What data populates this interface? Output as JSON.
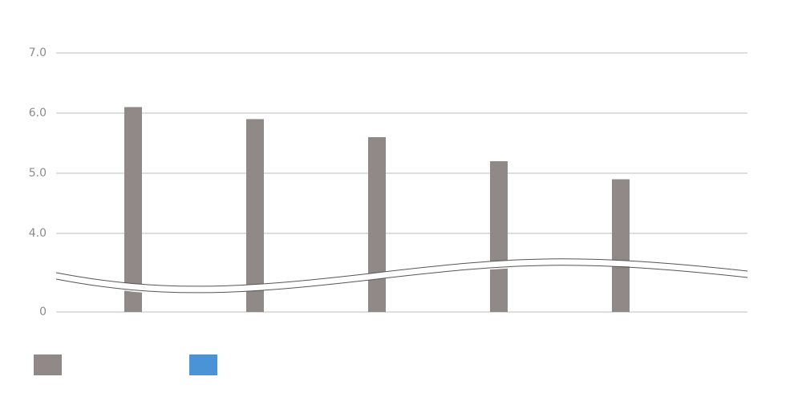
{
  "chart_data": {
    "type": "bar",
    "categories": [
      null,
      null,
      null,
      null,
      null
    ],
    "series": [
      {
        "name": null,
        "color": "#8f8a87",
        "values": [
          6.1,
          5.9,
          5.6,
          5.2,
          4.9
        ]
      },
      {
        "name": null,
        "color": "#4a94d6",
        "values": [
          null,
          null,
          null,
          null,
          null
        ]
      }
    ],
    "ylim": [
      0,
      7
    ],
    "yticks": [
      0,
      {
        "value": 4,
        "label": "4.0"
      },
      {
        "value": 5,
        "label": "5.0"
      },
      {
        "value": 6,
        "label": "6.0"
      },
      {
        "value": 7,
        "label": "7.0"
      }
    ],
    "broken_axis": true,
    "grid": true,
    "legend": "bottom-left"
  }
}
